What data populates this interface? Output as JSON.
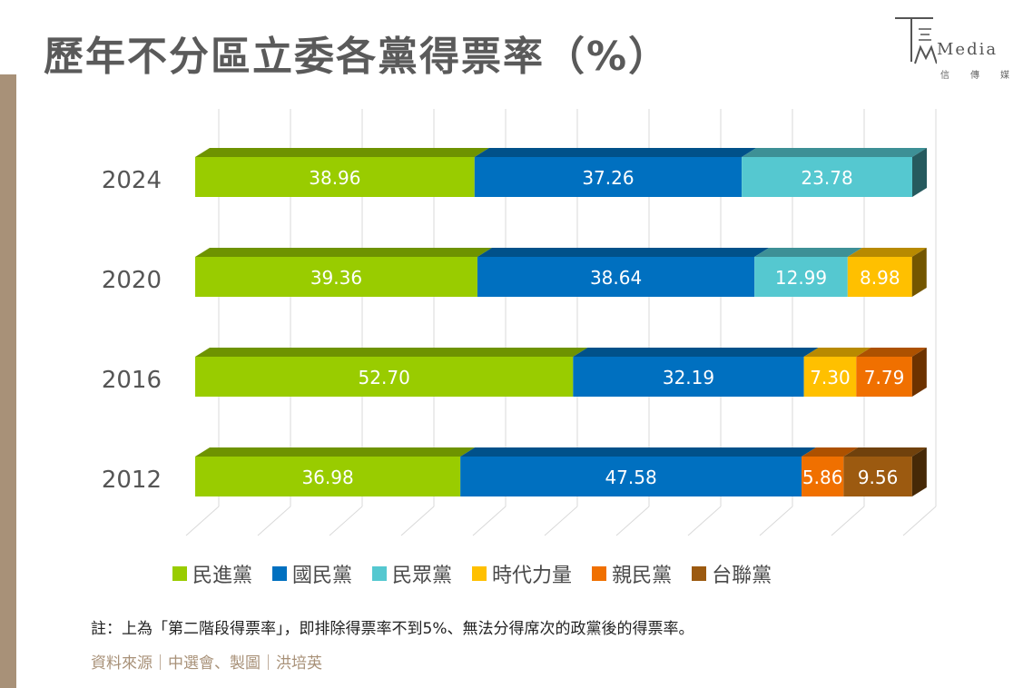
{
  "title": "歷年不分區立委各黨得票率（%）",
  "logo": {
    "wordmark": "Media",
    "sub": [
      "信",
      "傳",
      "媒"
    ]
  },
  "colors": {
    "side_bar": "#a89178",
    "top_face": "#4a9a10",
    "side_face": "#7a3d00"
  },
  "chart_data": {
    "type": "bar",
    "orientation": "horizontal-stacked-3d",
    "categories": [
      "2024",
      "2020",
      "2016",
      "2012"
    ],
    "series": [
      {
        "name": "民進黨",
        "color": "#99cc00",
        "values": [
          38.96,
          39.36,
          52.7,
          36.98
        ]
      },
      {
        "name": "國民黨",
        "color": "#0070c0",
        "values": [
          37.26,
          38.64,
          32.19,
          47.58
        ]
      },
      {
        "name": "民眾黨",
        "color": "#55c8d0",
        "values": [
          23.78,
          12.99,
          null,
          null
        ]
      },
      {
        "name": "時代力量",
        "color": "#ffc000",
        "values": [
          null,
          8.98,
          7.3,
          null
        ]
      },
      {
        "name": "親民黨",
        "color": "#f07000",
        "values": [
          null,
          null,
          7.79,
          5.86
        ]
      },
      {
        "name": "台聯黨",
        "color": "#9c5a10",
        "values": [
          null,
          null,
          null,
          9.56
        ]
      }
    ],
    "labels": [
      [
        "38.96",
        "37.26",
        "23.78",
        null,
        null,
        null
      ],
      [
        "39.36",
        "38.64",
        "12.99",
        "8.98",
        null,
        null
      ],
      [
        "52.70",
        "32.19",
        null,
        "7.30",
        "7.79",
        null
      ],
      [
        "36.98",
        "47.58",
        null,
        null,
        "5.86",
        "9.56"
      ]
    ],
    "xlim": [
      0,
      100
    ],
    "grid": true,
    "legend_position": "bottom"
  },
  "note": "註：上為「第二階段得票率」，即排除得票率不到5%、無法分得席次的政黨後的得票率。",
  "source": "資料來源｜中選會、製圖｜洪培英"
}
